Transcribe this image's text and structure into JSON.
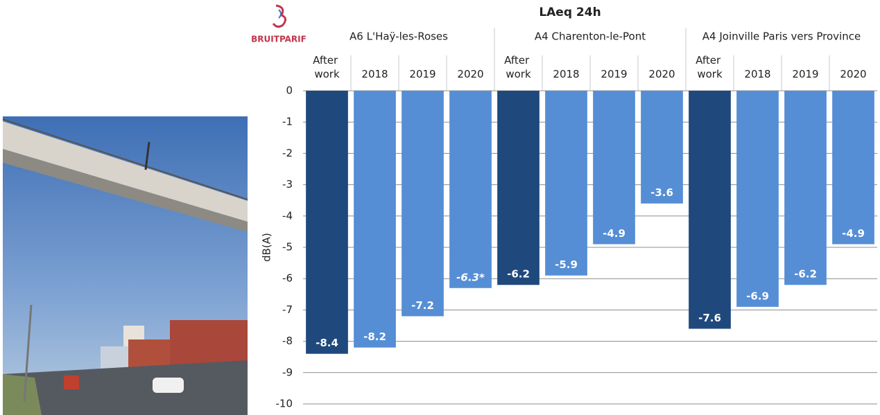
{
  "logo": "BRUITPARIF",
  "chart_data": {
    "type": "bar",
    "title": "LAeq 24h",
    "y_label": "dB(A)",
    "groups": [
      "A6 L'Haÿ-les-Roses",
      "A4 Charenton-le-Pont",
      "A4 Joinville Paris vers Province"
    ],
    "categories": [
      "After work",
      "2018",
      "2019",
      "2020",
      "After work",
      "2018",
      "2019",
      "2020",
      "After work",
      "2018",
      "2019",
      "2020"
    ],
    "values": [
      -8.4,
      -8.2,
      -7.2,
      -6.3,
      -6.2,
      -5.9,
      -4.9,
      -3.6,
      -7.6,
      -6.9,
      -6.2,
      -4.9
    ],
    "value_labels": [
      "-8.4",
      "-8.2",
      "-7.2",
      "-6.3*",
      "-6.2",
      "-5.9",
      "-4.9",
      "-3.6",
      "-7.6",
      "-6.9",
      "-6.2",
      "-4.9"
    ],
    "colors": [
      "#1f497d",
      "#558ed5",
      "#558ed5",
      "#558ed5",
      "#1f497d",
      "#558ed5",
      "#558ed5",
      "#558ed5",
      "#1f497d",
      "#558ed5",
      "#558ed5",
      "#558ed5"
    ],
    "ylim": [
      -10,
      0
    ],
    "yticks": [
      0,
      -1,
      -2,
      -3,
      -4,
      -5,
      -6,
      -7,
      -8,
      -9,
      -10
    ],
    "grid": true
  }
}
